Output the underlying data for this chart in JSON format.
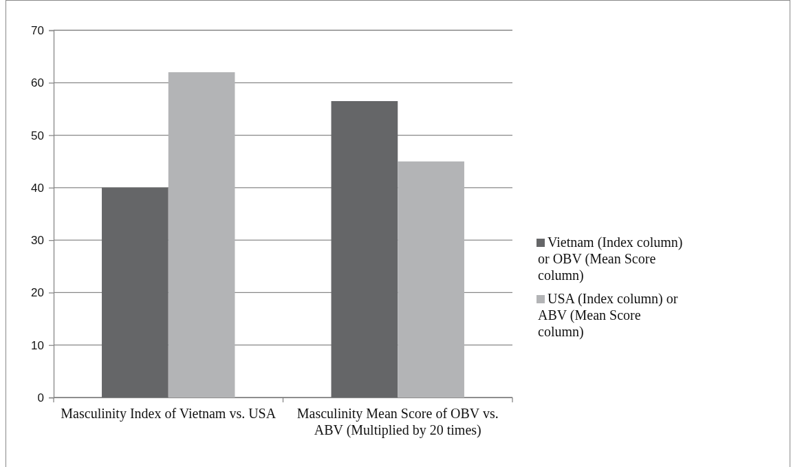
{
  "chart_data": {
    "type": "bar",
    "categories": [
      "Masculinity Index of Vietnam vs. USA",
      "Masculinity Mean Score of OBV vs. ABV  (Multiplied by 20 times)"
    ],
    "series": [
      {
        "name": "Vietnam (Index column) or OBV (Mean Score column)",
        "color": "#656668",
        "values": [
          40,
          56.5
        ]
      },
      {
        "name": "USA (Index column) or ABV (Mean Score column)",
        "color": "#b3b4b6",
        "values": [
          62,
          45
        ]
      }
    ],
    "ylim": [
      0,
      70
    ],
    "yticks": [
      0,
      10,
      20,
      30,
      40,
      50,
      60,
      70
    ],
    "grid": "y",
    "legend": "right"
  }
}
